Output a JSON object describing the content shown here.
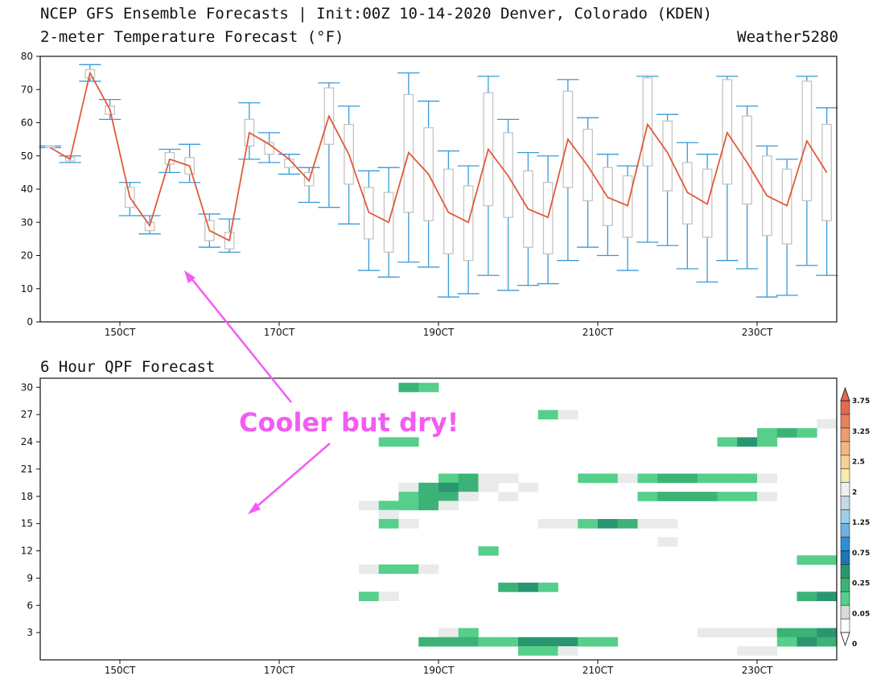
{
  "header": {
    "title": "NCEP GFS Ensemble Forecasts | Init:00Z 10-14-2020 Denver, Colorado (KDEN)",
    "subtitle": "2-meter Temperature Forecast (°F)",
    "credit": "Weather5280",
    "qpf_title": "6 Hour QPF Forecast",
    "annotation": "Cooler but dry!"
  },
  "colors": {
    "mean_line": "#e05a3a",
    "whisker": "#3a9ad6",
    "box": "#c4c4c4",
    "annotation": "#f25cf2"
  },
  "chart_data": [
    {
      "type": "box",
      "title": "2-meter Temperature Forecast (°F)",
      "x_unit": "forecast step (6 h), step 0 = 00Z 14 Oct 2020",
      "x_ticks": [
        {
          "step": 4,
          "label": "150CT"
        },
        {
          "step": 12,
          "label": "170CT"
        },
        {
          "step": 20,
          "label": "190CT"
        },
        {
          "step": 28,
          "label": "210CT"
        },
        {
          "step": 36,
          "label": "230CT"
        }
      ],
      "xlim": [
        0,
        40
      ],
      "ylim": [
        0,
        80
      ],
      "y_ticks": [
        0,
        10,
        20,
        30,
        40,
        50,
        60,
        70,
        80
      ],
      "grid": false,
      "steps": [
        {
          "x": 0.5,
          "min": 52.5,
          "q1": 52.5,
          "q3": 53,
          "max": 53,
          "mean": 52.5
        },
        {
          "x": 1.5,
          "min": 48,
          "q1": 48.5,
          "q3": 49.5,
          "max": 50,
          "mean": 49
        },
        {
          "x": 2.5,
          "min": 72.5,
          "q1": 73.5,
          "q3": 76,
          "max": 77.5,
          "mean": 75
        },
        {
          "x": 3.5,
          "min": 61,
          "q1": 62.5,
          "q3": 65,
          "max": 67,
          "mean": 64
        },
        {
          "x": 4.5,
          "min": 32,
          "q1": 34.5,
          "q3": 40.5,
          "max": 42,
          "mean": 37.5
        },
        {
          "x": 5.5,
          "min": 26.5,
          "q1": 27.5,
          "q3": 30,
          "max": 32,
          "mean": 29
        },
        {
          "x": 6.5,
          "min": 45,
          "q1": 47.5,
          "q3": 51,
          "max": 52,
          "mean": 49
        },
        {
          "x": 7.5,
          "min": 42,
          "q1": 44.5,
          "q3": 49.5,
          "max": 53.5,
          "mean": 47
        },
        {
          "x": 8.5,
          "min": 22.5,
          "q1": 24.5,
          "q3": 30.5,
          "max": 32.5,
          "mean": 27.5
        },
        {
          "x": 9.5,
          "min": 21,
          "q1": 22,
          "q3": 27,
          "max": 31,
          "mean": 24.5
        },
        {
          "x": 10.5,
          "min": 49,
          "q1": 53,
          "q3": 61,
          "max": 66,
          "mean": 57
        },
        {
          "x": 11.5,
          "min": 48,
          "q1": 50.5,
          "q3": 54,
          "max": 57,
          "mean": 53.5
        },
        {
          "x": 12.5,
          "min": 44.5,
          "q1": 46.5,
          "q3": 49,
          "max": 50.5,
          "mean": 49
        },
        {
          "x": 13.5,
          "min": 36,
          "q1": 41,
          "q3": 45,
          "max": 46.5,
          "mean": 42.5
        },
        {
          "x": 14.5,
          "min": 34.5,
          "q1": 53.5,
          "q3": 70.5,
          "max": 72,
          "mean": 62
        },
        {
          "x": 15.5,
          "min": 29.5,
          "q1": 41.5,
          "q3": 59.5,
          "max": 65,
          "mean": 50.5
        },
        {
          "x": 16.5,
          "min": 15.5,
          "q1": 25,
          "q3": 40.5,
          "max": 45.5,
          "mean": 33
        },
        {
          "x": 17.5,
          "min": 13.5,
          "q1": 21,
          "q3": 39,
          "max": 46.5,
          "mean": 30
        },
        {
          "x": 18.5,
          "min": 18,
          "q1": 33,
          "q3": 68.5,
          "max": 75,
          "mean": 51
        },
        {
          "x": 19.5,
          "min": 16.5,
          "q1": 30.5,
          "q3": 58.5,
          "max": 66.5,
          "mean": 44.5
        },
        {
          "x": 20.5,
          "min": 7.5,
          "q1": 20.5,
          "q3": 46,
          "max": 51.5,
          "mean": 33
        },
        {
          "x": 21.5,
          "min": 8.5,
          "q1": 18.5,
          "q3": 41,
          "max": 47,
          "mean": 30
        },
        {
          "x": 22.5,
          "min": 14,
          "q1": 35,
          "q3": 69,
          "max": 74,
          "mean": 52
        },
        {
          "x": 23.5,
          "min": 9.5,
          "q1": 31.5,
          "q3": 57,
          "max": 61,
          "mean": 44
        },
        {
          "x": 24.5,
          "min": 11,
          "q1": 22.5,
          "q3": 45.5,
          "max": 51,
          "mean": 34
        },
        {
          "x": 25.5,
          "min": 11.5,
          "q1": 20.5,
          "q3": 42,
          "max": 50,
          "mean": 31.5
        },
        {
          "x": 26.5,
          "min": 18.5,
          "q1": 40.5,
          "q3": 69.5,
          "max": 73,
          "mean": 55
        },
        {
          "x": 27.5,
          "min": 22.5,
          "q1": 36.5,
          "q3": 58,
          "max": 61.5,
          "mean": 47
        },
        {
          "x": 28.5,
          "min": 20,
          "q1": 29,
          "q3": 46.5,
          "max": 50.5,
          "mean": 37.5
        },
        {
          "x": 29.5,
          "min": 15.5,
          "q1": 25.5,
          "q3": 44,
          "max": 47,
          "mean": 35
        },
        {
          "x": 30.5,
          "min": 24,
          "q1": 47,
          "q3": 73.5,
          "max": 74,
          "mean": 59.5
        },
        {
          "x": 31.5,
          "min": 23,
          "q1": 39.5,
          "q3": 60.5,
          "max": 62.5,
          "mean": 51
        },
        {
          "x": 32.5,
          "min": 16,
          "q1": 29.5,
          "q3": 48,
          "max": 54,
          "mean": 39
        },
        {
          "x": 33.5,
          "min": 12,
          "q1": 25.5,
          "q3": 46,
          "max": 50.5,
          "mean": 35.5
        },
        {
          "x": 34.5,
          "min": 18.5,
          "q1": 41.5,
          "q3": 73,
          "max": 74,
          "mean": 57
        },
        {
          "x": 35.5,
          "min": 16,
          "q1": 35.5,
          "q3": 62,
          "max": 65,
          "mean": 48
        },
        {
          "x": 36.5,
          "min": 7.5,
          "q1": 26,
          "q3": 50,
          "max": 53,
          "mean": 38
        },
        {
          "x": 37.5,
          "min": 8,
          "q1": 23.5,
          "q3": 46,
          "max": 49,
          "mean": 35
        },
        {
          "x": 38.5,
          "min": 17,
          "q1": 36.5,
          "q3": 72.5,
          "max": 74,
          "mean": 54.5
        },
        {
          "x": 39.5,
          "min": 14,
          "q1": 30.5,
          "q3": 59.5,
          "max": 64.5,
          "mean": 45
        }
      ]
    },
    {
      "type": "heatmap",
      "title": "6 Hour QPF Forecast",
      "x_unit": "forecast step (6 h)",
      "x_ticks": [
        {
          "step": 4,
          "label": "150CT"
        },
        {
          "step": 12,
          "label": "170CT"
        },
        {
          "step": 20,
          "label": "190CT"
        },
        {
          "step": 28,
          "label": "210CT"
        },
        {
          "step": 36,
          "label": "230CT"
        }
      ],
      "xlim": [
        0,
        40
      ],
      "ylim": [
        0,
        31
      ],
      "y_ticks": [
        3,
        6,
        9,
        12,
        15,
        18,
        21,
        24,
        27,
        30
      ],
      "y_unit": "ensemble member",
      "value_levels": [
        {
          "label": "0",
          "color": "#e8ebea"
        },
        {
          "label": "0.05",
          "color": "#55cf8a"
        },
        {
          "label": "0.25",
          "color": "#3bb377"
        },
        {
          "label": "0.75",
          "color": "#2a9670"
        }
      ],
      "colorbar": {
        "labels": [
          "0",
          "0.05",
          "0.25",
          "0.75",
          "1.25",
          "2",
          "2.5",
          "3.25",
          "3.75"
        ],
        "colors": [
          "#ffffff",
          "#d8dad9",
          "#55cf8a",
          "#3bb377",
          "#2a9670",
          "#1e74b8",
          "#2e8fd8",
          "#6fb0e0",
          "#a0cde8",
          "#c6d8e2",
          "#f0f0f0",
          "#f5ecb0",
          "#f5d090",
          "#f0b880",
          "#ee9a72",
          "#e88060",
          "#e26a50"
        ]
      },
      "cells": [
        {
          "x": 18,
          "y": 30,
          "v": 2
        },
        {
          "x": 19,
          "y": 30,
          "v": 1
        },
        {
          "x": 25,
          "y": 27,
          "v": 1
        },
        {
          "x": 26,
          "y": 27,
          "v": 0
        },
        {
          "x": 39,
          "y": 26,
          "v": 0
        },
        {
          "x": 36,
          "y": 25,
          "v": 1
        },
        {
          "x": 37,
          "y": 25,
          "v": 2
        },
        {
          "x": 38,
          "y": 25,
          "v": 1
        },
        {
          "x": 17,
          "y": 24,
          "v": 1
        },
        {
          "x": 18,
          "y": 24,
          "v": 1
        },
        {
          "x": 34,
          "y": 24,
          "v": 1
        },
        {
          "x": 35,
          "y": 24,
          "v": 3
        },
        {
          "x": 36,
          "y": 24,
          "v": 1
        },
        {
          "x": 20,
          "y": 20,
          "v": 1
        },
        {
          "x": 21,
          "y": 20,
          "v": 2
        },
        {
          "x": 22,
          "y": 20,
          "v": 0
        },
        {
          "x": 23,
          "y": 20,
          "v": 0
        },
        {
          "x": 27,
          "y": 20,
          "v": 1
        },
        {
          "x": 28,
          "y": 20,
          "v": 1
        },
        {
          "x": 29,
          "y": 20,
          "v": 0
        },
        {
          "x": 30,
          "y": 20,
          "v": 1
        },
        {
          "x": 31,
          "y": 20,
          "v": 2
        },
        {
          "x": 32,
          "y": 20,
          "v": 2
        },
        {
          "x": 33,
          "y": 20,
          "v": 1
        },
        {
          "x": 34,
          "y": 20,
          "v": 1
        },
        {
          "x": 35,
          "y": 20,
          "v": 1
        },
        {
          "x": 36,
          "y": 20,
          "v": 0
        },
        {
          "x": 18,
          "y": 19,
          "v": 0
        },
        {
          "x": 19,
          "y": 19,
          "v": 2
        },
        {
          "x": 20,
          "y": 19,
          "v": 3
        },
        {
          "x": 21,
          "y": 19,
          "v": 2
        },
        {
          "x": 22,
          "y": 19,
          "v": 0
        },
        {
          "x": 24,
          "y": 19,
          "v": 0
        },
        {
          "x": 18,
          "y": 18,
          "v": 1
        },
        {
          "x": 19,
          "y": 18,
          "v": 2
        },
        {
          "x": 20,
          "y": 18,
          "v": 2
        },
        {
          "x": 21,
          "y": 18,
          "v": 0
        },
        {
          "x": 23,
          "y": 18,
          "v": 0
        },
        {
          "x": 30,
          "y": 18,
          "v": 1
        },
        {
          "x": 31,
          "y": 18,
          "v": 2
        },
        {
          "x": 32,
          "y": 18,
          "v": 2
        },
        {
          "x": 33,
          "y": 18,
          "v": 2
        },
        {
          "x": 34,
          "y": 18,
          "v": 1
        },
        {
          "x": 35,
          "y": 18,
          "v": 1
        },
        {
          "x": 36,
          "y": 18,
          "v": 0
        },
        {
          "x": 16,
          "y": 17,
          "v": 0
        },
        {
          "x": 17,
          "y": 17,
          "v": 1
        },
        {
          "x": 18,
          "y": 17,
          "v": 1
        },
        {
          "x": 19,
          "y": 17,
          "v": 2
        },
        {
          "x": 20,
          "y": 17,
          "v": 0
        },
        {
          "x": 17,
          "y": 16,
          "v": 0
        },
        {
          "x": 17,
          "y": 15,
          "v": 1
        },
        {
          "x": 18,
          "y": 15,
          "v": 0
        },
        {
          "x": 25,
          "y": 15,
          "v": 0
        },
        {
          "x": 26,
          "y": 15,
          "v": 0
        },
        {
          "x": 27,
          "y": 15,
          "v": 1
        },
        {
          "x": 28,
          "y": 15,
          "v": 3
        },
        {
          "x": 29,
          "y": 15,
          "v": 2
        },
        {
          "x": 30,
          "y": 15,
          "v": 0
        },
        {
          "x": 31,
          "y": 15,
          "v": 0
        },
        {
          "x": 31,
          "y": 13,
          "v": 0
        },
        {
          "x": 22,
          "y": 12,
          "v": 1
        },
        {
          "x": 38,
          "y": 11,
          "v": 1
        },
        {
          "x": 39,
          "y": 11,
          "v": 1
        },
        {
          "x": 16,
          "y": 10,
          "v": 0
        },
        {
          "x": 17,
          "y": 10,
          "v": 1
        },
        {
          "x": 18,
          "y": 10,
          "v": 1
        },
        {
          "x": 19,
          "y": 10,
          "v": 0
        },
        {
          "x": 23,
          "y": 8,
          "v": 2
        },
        {
          "x": 24,
          "y": 8,
          "v": 3
        },
        {
          "x": 25,
          "y": 8,
          "v": 1
        },
        {
          "x": 16,
          "y": 7,
          "v": 1
        },
        {
          "x": 17,
          "y": 7,
          "v": 0
        },
        {
          "x": 38,
          "y": 7,
          "v": 2
        },
        {
          "x": 39,
          "y": 7,
          "v": 3
        },
        {
          "x": 20,
          "y": 3,
          "v": 0
        },
        {
          "x": 21,
          "y": 3,
          "v": 1
        },
        {
          "x": 33,
          "y": 3,
          "v": 0
        },
        {
          "x": 34,
          "y": 3,
          "v": 0
        },
        {
          "x": 35,
          "y": 3,
          "v": 0
        },
        {
          "x": 36,
          "y": 3,
          "v": 0
        },
        {
          "x": 37,
          "y": 3,
          "v": 2
        },
        {
          "x": 38,
          "y": 3,
          "v": 2
        },
        {
          "x": 39,
          "y": 3,
          "v": 3
        },
        {
          "x": 19,
          "y": 2,
          "v": 2
        },
        {
          "x": 20,
          "y": 2,
          "v": 2
        },
        {
          "x": 21,
          "y": 2,
          "v": 2
        },
        {
          "x": 22,
          "y": 2,
          "v": 1
        },
        {
          "x": 23,
          "y": 2,
          "v": 1
        },
        {
          "x": 24,
          "y": 2,
          "v": 3
        },
        {
          "x": 25,
          "y": 2,
          "v": 3
        },
        {
          "x": 26,
          "y": 2,
          "v": 3
        },
        {
          "x": 27,
          "y": 2,
          "v": 1
        },
        {
          "x": 28,
          "y": 2,
          "v": 1
        },
        {
          "x": 37,
          "y": 2,
          "v": 1
        },
        {
          "x": 38,
          "y": 2,
          "v": 3
        },
        {
          "x": 39,
          "y": 2,
          "v": 2
        },
        {
          "x": 24,
          "y": 1,
          "v": 1
        },
        {
          "x": 25,
          "y": 1,
          "v": 1
        },
        {
          "x": 26,
          "y": 1,
          "v": 0
        },
        {
          "x": 35,
          "y": 1,
          "v": 0
        },
        {
          "x": 36,
          "y": 1,
          "v": 0
        }
      ]
    }
  ]
}
